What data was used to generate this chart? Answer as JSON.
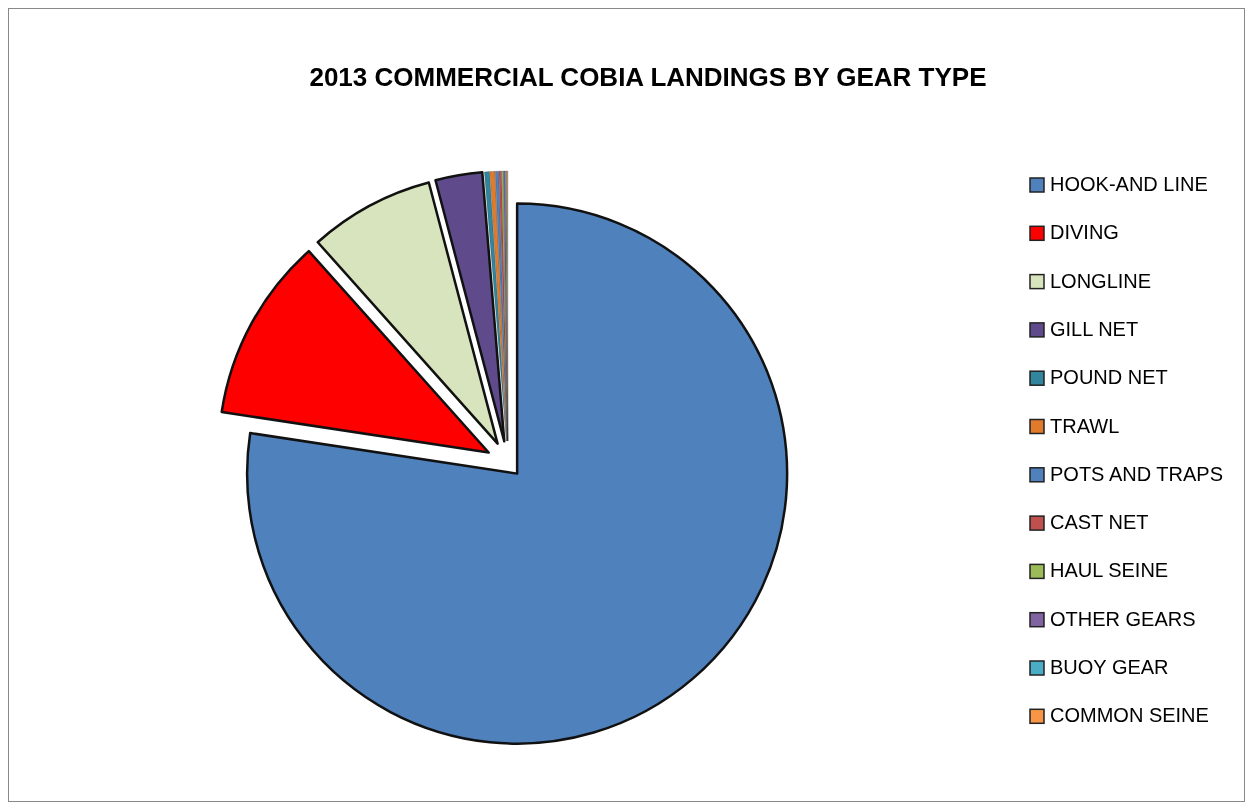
{
  "chart_data": {
    "type": "pie",
    "title": "2013 COMMERCIAL COBIA LANDINGS BY GEAR TYPE",
    "categories": [
      "HOOK-AND LINE",
      "DIVING",
      "LONGLINE",
      "GILL NET",
      "POUND NET",
      "TRAWL",
      "POTS AND TRAPS",
      "CAST NET",
      "HAUL SEINE",
      "OTHER GEARS",
      "BUOY GEAR",
      "COMMON SEINE"
    ],
    "values": [
      77.4,
      11,
      7.5,
      2.8,
      0.3,
      0.3,
      0.2,
      0.15,
      0.1,
      0.1,
      0.08,
      0.07
    ],
    "colors": [
      "#4f81bd",
      "#ff0000",
      "#d7e4bd",
      "#5f4b8b",
      "#31859c",
      "#e07b2c",
      "#4f81bd",
      "#c0504d",
      "#9bbb59",
      "#8064a2",
      "#4bacc6",
      "#f79646"
    ],
    "legend": "right"
  }
}
